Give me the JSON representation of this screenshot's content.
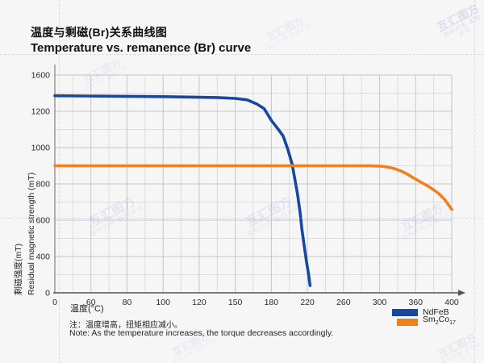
{
  "page": {
    "background": "#f6f6f7"
  },
  "chart_data": {
    "type": "line",
    "title_zh": "温度与剩磁(Br)关系曲线图",
    "title_en": "Temperature vs. remanence (Br) curve",
    "x_axis": {
      "title": "温度(°C)",
      "ticks": [
        0,
        60,
        80,
        100,
        120,
        150,
        180,
        220,
        260,
        300,
        360,
        400
      ],
      "tick_labels": [
        "0",
        "60",
        "80",
        "100",
        "120",
        "150",
        "180",
        "220",
        "260",
        "300",
        "360",
        "400"
      ],
      "arrow_right": true
    },
    "y_axis": {
      "title_zh": "剩磁强度(mT)",
      "title_en": "Residual magnetic strength (mT)",
      "ticks": [
        1600,
        1200,
        1000,
        800,
        600,
        400,
        0
      ],
      "tick_labels": [
        "1600",
        "1200",
        "1000",
        "800",
        "600",
        "400",
        "0"
      ]
    },
    "grid": "major with minor lines between each labeled line",
    "series": [
      {
        "name": "NdFeB",
        "color": "#17479e",
        "points": [
          [
            0,
            1372
          ],
          [
            50,
            1369
          ],
          [
            100,
            1362
          ],
          [
            135,
            1352
          ],
          [
            150,
            1342
          ],
          [
            160,
            1326
          ],
          [
            168,
            1280
          ],
          [
            174,
            1230
          ],
          [
            180,
            1150
          ],
          [
            187,
            1105
          ],
          [
            193,
            1065
          ],
          [
            198,
            995
          ],
          [
            203,
            910
          ],
          [
            206,
            830
          ],
          [
            209,
            745
          ],
          [
            212,
            640
          ],
          [
            214,
            545
          ],
          [
            217,
            440
          ],
          [
            219,
            340
          ],
          [
            221,
            225
          ],
          [
            223,
            80
          ]
        ]
      },
      {
        "name": "Sm2Co17",
        "color": "#f0801e",
        "points": [
          [
            0,
            900
          ],
          [
            100,
            900
          ],
          [
            200,
            900
          ],
          [
            290,
            900
          ],
          [
            305,
            897
          ],
          [
            315,
            892
          ],
          [
            325,
            884
          ],
          [
            335,
            872
          ],
          [
            345,
            856
          ],
          [
            355,
            836
          ],
          [
            365,
            812
          ],
          [
            375,
            784
          ],
          [
            385,
            750
          ],
          [
            392,
            715
          ],
          [
            400,
            660
          ]
        ]
      }
    ],
    "legend": {
      "position": "bottom-right",
      "items": [
        {
          "label": "NdFeB",
          "color": "#17479e"
        },
        {
          "label_base1": "Sm",
          "label_sub1": "2",
          "label_base2": "Co",
          "label_sub2": "17",
          "color": "#f0801e"
        }
      ]
    }
  },
  "notes": {
    "zh": "注：温度增高，扭矩相应减小。",
    "en": "Note: As the temperature increases, the torque decreases accordingly."
  },
  "watermark": {
    "brand": "互汇图方",
    "notice_1": "版权所有",
    "notice_2": "盗图必究"
  }
}
